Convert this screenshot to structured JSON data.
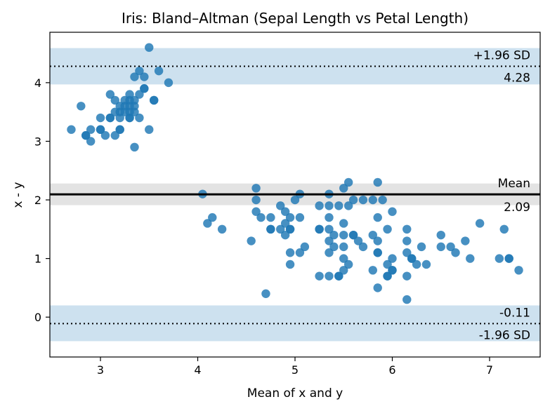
{
  "chart_data": {
    "type": "scatter",
    "title": "Iris: Bland–Altman (Sepal Length vs Petal Length)",
    "xlabel": "Mean of x and y",
    "ylabel": "x - y",
    "xlim": [
      2.48,
      7.52
    ],
    "ylim": [
      -0.68,
      4.86
    ],
    "xticks": [
      3,
      4,
      5,
      6,
      7
    ],
    "yticks": [
      0,
      1,
      2,
      3,
      4
    ],
    "grid": false,
    "mean_diff": 2.094,
    "upper_loa": 4.28,
    "lower_loa": -0.11,
    "mean_band": [
      1.91,
      2.28
    ],
    "upper_band": [
      3.97,
      4.59
    ],
    "lower_band": [
      -0.41,
      0.2
    ],
    "annotations": {
      "upper_label": "+1.96 SD",
      "upper_value": "4.28",
      "mean_label": "Mean",
      "mean_value": "2.09",
      "lower_value": "-0.11",
      "lower_label": "-1.96 SD"
    },
    "colors": {
      "points": "#1f77b4",
      "loa_band": "#cde1ef",
      "mean_band": "#e3e3e3",
      "mean_line": "#000000",
      "loa_line": "#000000"
    },
    "points": [
      [
        2.7,
        3.2
      ],
      [
        2.8,
        3.6
      ],
      [
        2.85,
        3.1
      ],
      [
        2.85,
        3.1
      ],
      [
        2.9,
        3.2
      ],
      [
        2.9,
        3.0
      ],
      [
        3.0,
        3.4
      ],
      [
        3.0,
        3.2
      ],
      [
        3.0,
        3.2
      ],
      [
        3.05,
        3.1
      ],
      [
        3.1,
        3.8
      ],
      [
        3.1,
        3.4
      ],
      [
        3.1,
        3.4
      ],
      [
        3.15,
        3.7
      ],
      [
        3.15,
        3.5
      ],
      [
        3.15,
        3.1
      ],
      [
        3.2,
        3.6
      ],
      [
        3.2,
        3.5
      ],
      [
        3.2,
        3.4
      ],
      [
        3.2,
        3.2
      ],
      [
        3.2,
        3.2
      ],
      [
        3.25,
        3.7
      ],
      [
        3.25,
        3.6
      ],
      [
        3.25,
        3.5
      ],
      [
        3.3,
        3.8
      ],
      [
        3.3,
        3.7
      ],
      [
        3.3,
        3.6
      ],
      [
        3.3,
        3.5
      ],
      [
        3.3,
        3.4
      ],
      [
        3.3,
        3.4
      ],
      [
        3.35,
        4.1
      ],
      [
        3.35,
        3.7
      ],
      [
        3.35,
        3.6
      ],
      [
        3.35,
        3.5
      ],
      [
        3.35,
        2.9
      ],
      [
        3.4,
        4.2
      ],
      [
        3.4,
        3.8
      ],
      [
        3.4,
        3.4
      ],
      [
        3.45,
        4.1
      ],
      [
        3.45,
        3.9
      ],
      [
        3.45,
        3.9
      ],
      [
        3.5,
        4.6
      ],
      [
        3.5,
        3.2
      ],
      [
        3.55,
        3.7
      ],
      [
        3.55,
        3.7
      ],
      [
        3.6,
        4.2
      ],
      [
        3.7,
        4.0
      ],
      [
        4.05,
        2.1
      ],
      [
        4.1,
        1.6
      ],
      [
        4.15,
        1.7
      ],
      [
        4.25,
        1.5
      ],
      [
        4.55,
        1.3
      ],
      [
        4.6,
        2.2
      ],
      [
        4.6,
        2.0
      ],
      [
        4.6,
        1.8
      ],
      [
        4.65,
        1.7
      ],
      [
        4.7,
        0.4
      ],
      [
        4.75,
        1.7
      ],
      [
        4.75,
        1.5
      ],
      [
        4.75,
        1.5
      ],
      [
        4.85,
        1.9
      ],
      [
        4.85,
        1.5
      ],
      [
        4.9,
        1.8
      ],
      [
        4.9,
        1.6
      ],
      [
        4.9,
        1.4
      ],
      [
        4.95,
        1.7
      ],
      [
        4.95,
        1.5
      ],
      [
        4.95,
        1.5
      ],
      [
        4.95,
        1.1
      ],
      [
        4.95,
        0.9
      ],
      [
        5.0,
        2.0
      ],
      [
        5.05,
        2.1
      ],
      [
        5.05,
        1.7
      ],
      [
        5.05,
        1.1
      ],
      [
        5.1,
        1.2
      ],
      [
        5.25,
        1.9
      ],
      [
        5.25,
        1.5
      ],
      [
        5.25,
        1.5
      ],
      [
        5.25,
        0.7
      ],
      [
        5.35,
        2.1
      ],
      [
        5.35,
        1.9
      ],
      [
        5.35,
        1.7
      ],
      [
        5.35,
        1.5
      ],
      [
        5.35,
        1.3
      ],
      [
        5.35,
        1.1
      ],
      [
        5.35,
        0.7
      ],
      [
        5.4,
        1.4
      ],
      [
        5.4,
        1.2
      ],
      [
        5.45,
        1.9
      ],
      [
        5.45,
        0.7
      ],
      [
        5.45,
        0.7
      ],
      [
        5.5,
        2.2
      ],
      [
        5.5,
        1.6
      ],
      [
        5.5,
        1.4
      ],
      [
        5.5,
        1.2
      ],
      [
        5.5,
        1.0
      ],
      [
        5.5,
        0.8
      ],
      [
        5.55,
        2.3
      ],
      [
        5.55,
        1.9
      ],
      [
        5.55,
        0.9
      ],
      [
        5.6,
        2.0
      ],
      [
        5.6,
        1.4
      ],
      [
        5.6,
        1.4
      ],
      [
        5.65,
        1.3
      ],
      [
        5.7,
        2.0
      ],
      [
        5.7,
        1.2
      ],
      [
        5.8,
        2.0
      ],
      [
        5.8,
        1.4
      ],
      [
        5.8,
        0.8
      ],
      [
        5.85,
        2.3
      ],
      [
        5.85,
        1.7
      ],
      [
        5.85,
        1.3
      ],
      [
        5.85,
        1.1
      ],
      [
        5.85,
        1.1
      ],
      [
        5.85,
        0.5
      ],
      [
        5.9,
        2.0
      ],
      [
        5.95,
        1.5
      ],
      [
        5.95,
        0.9
      ],
      [
        5.95,
        0.7
      ],
      [
        5.95,
        0.7
      ],
      [
        6.0,
        1.8
      ],
      [
        6.0,
        1.0
      ],
      [
        6.0,
        0.8
      ],
      [
        6.0,
        0.8
      ],
      [
        6.15,
        1.5
      ],
      [
        6.15,
        1.3
      ],
      [
        6.15,
        1.1
      ],
      [
        6.15,
        0.7
      ],
      [
        6.15,
        0.3
      ],
      [
        6.2,
        1.0
      ],
      [
        6.2,
        1.0
      ],
      [
        6.25,
        0.9
      ],
      [
        6.3,
        1.2
      ],
      [
        6.35,
        0.9
      ],
      [
        6.5,
        1.4
      ],
      [
        6.5,
        1.2
      ],
      [
        6.6,
        1.2
      ],
      [
        6.65,
        1.1
      ],
      [
        6.75,
        1.3
      ],
      [
        6.8,
        1.0
      ],
      [
        6.9,
        1.6
      ],
      [
        7.1,
        1.0
      ],
      [
        7.15,
        1.5
      ],
      [
        7.2,
        1.0
      ],
      [
        7.2,
        1.0
      ],
      [
        7.3,
        0.8
      ]
    ]
  }
}
